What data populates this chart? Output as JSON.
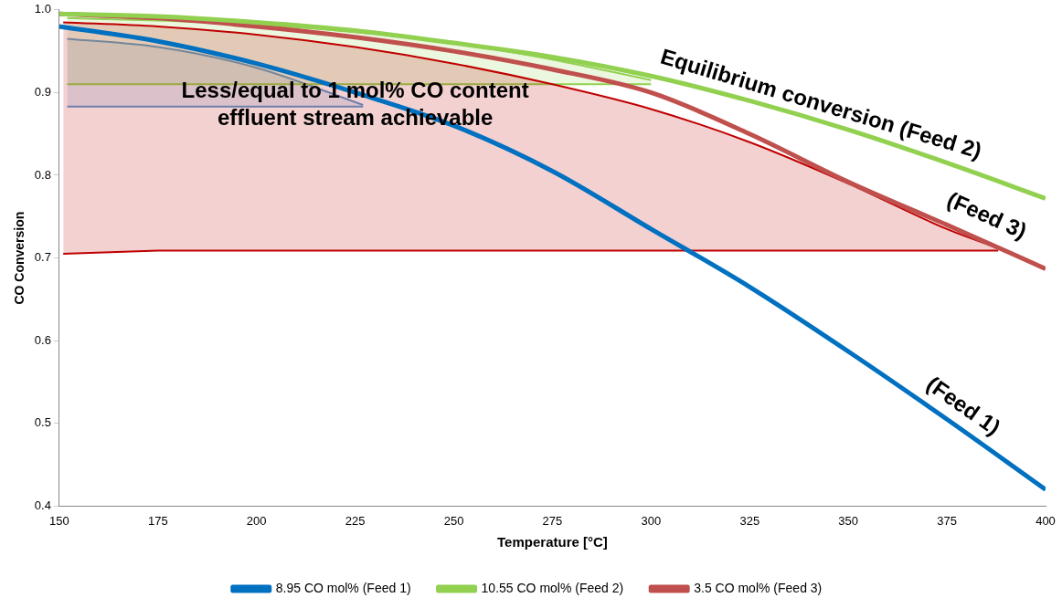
{
  "chart_data": {
    "type": "line",
    "xlabel": "Temperature [°C]",
    "ylabel": "CO Conversion",
    "xlim": [
      150,
      400
    ],
    "xticks": [
      150,
      175,
      200,
      225,
      250,
      275,
      300,
      325,
      350,
      375,
      400
    ],
    "ylim": [
      0.4,
      1.0
    ],
    "yticks": [
      0.4,
      0.5,
      0.6,
      0.7,
      0.8,
      0.9,
      {
        "value": 1.0,
        "label": "1.0"
      }
    ],
    "grid": false,
    "legend": "bottom",
    "marker": "none",
    "line_style": "solid",
    "series": [
      {
        "type": "area",
        "color": "#c00000",
        "x": [
          151,
          175,
          200,
          225,
          250,
          275,
          300,
          325,
          350,
          375,
          388
        ],
        "values": [
          0.985,
          0.98,
          0.97,
          0.955,
          0.935,
          0.91,
          0.88,
          0.84,
          0.79,
          0.735,
          0.712
        ]
      },
      {
        "type": "line",
        "color": "#c00000",
        "x": [
          151,
          175,
          200,
          225,
          250,
          275,
          300,
          325,
          350,
          375,
          388
        ],
        "values": [
          0.705,
          0.709,
          0.709,
          0.709,
          0.709,
          0.709,
          0.709,
          0.709,
          0.709,
          0.709,
          0.709
        ]
      },
      {
        "type": "area",
        "color": "#92d050",
        "x": [
          152,
          175,
          200,
          225,
          250,
          275,
          300
        ],
        "values": [
          0.99,
          0.987,
          0.982,
          0.973,
          0.96,
          0.94,
          0.915
        ]
      },
      {
        "type": "line",
        "color": "#92d050",
        "x": [
          152,
          175,
          200,
          225,
          250,
          275,
          300
        ],
        "values": [
          0.91,
          0.91,
          0.91,
          0.91,
          0.91,
          0.91,
          0.91
        ]
      },
      {
        "type": "area",
        "color": "#5b9bd5",
        "x": [
          152,
          175,
          200,
          227
        ],
        "values": [
          0.965,
          0.955,
          0.93,
          0.885
        ]
      },
      {
        "type": "line",
        "color": "#5b9bd5",
        "x": [
          152,
          175,
          200,
          227
        ],
        "values": [
          0.883,
          0.883,
          0.883,
          0.883
        ]
      },
      {
        "name": "8.95 CO mol% (Feed 1)",
        "color": "#0070c0",
        "x": [
          150,
          175,
          200,
          225,
          250,
          275,
          300,
          325,
          350,
          375,
          400
        ],
        "values": [
          0.98,
          0.962,
          0.935,
          0.9,
          0.86,
          0.805,
          0.735,
          0.665,
          0.587,
          0.505,
          0.42
        ]
      },
      {
        "name": "10.55 CO mol% (Feed 2)",
        "color": "#92d050",
        "x": [
          150,
          175,
          200,
          225,
          250,
          275,
          300,
          325,
          350,
          375,
          400
        ],
        "values": [
          0.995,
          0.992,
          0.985,
          0.975,
          0.96,
          0.943,
          0.92,
          0.89,
          0.855,
          0.815,
          0.772
        ]
      },
      {
        "name": "3.5 CO mol% (Feed 3)",
        "color": "#c0504d",
        "x": [
          150,
          175,
          200,
          225,
          250,
          275,
          300,
          325,
          350,
          375,
          400
        ],
        "values": [
          0.995,
          0.99,
          0.98,
          0.967,
          0.95,
          0.928,
          0.9,
          0.85,
          0.792,
          0.74,
          0.687
        ]
      }
    ],
    "annotations": [
      "Equilibrium conversion (Feed 2)",
      "(Feed 3)",
      "(Feed 1)",
      {
        "text": "Less/equal to 1 mol% CO content effluent stream achievable",
        "x": 225,
        "y": 0.885
      }
    ]
  }
}
